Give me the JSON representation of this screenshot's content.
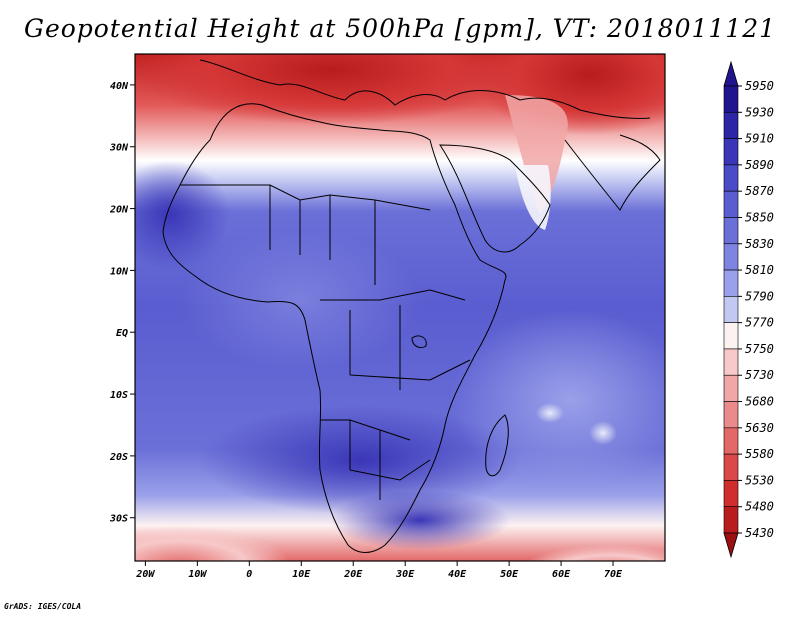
{
  "title": "Geopotential Height at 500hPa [gpm], VT: 2018011121",
  "credit": "GrADS: IGES/COLA",
  "lat_axis": [
    "40N",
    "30N",
    "20N",
    "10N",
    "EQ",
    "10S",
    "20S",
    "30S"
  ],
  "lat_values": [
    40,
    30,
    20,
    10,
    0,
    -10,
    -20,
    -30
  ],
  "lon_axis": [
    "20W",
    "10W",
    "0",
    "10E",
    "20E",
    "30E",
    "40E",
    "50E",
    "60E",
    "70E"
  ],
  "lon_values": [
    -20,
    -10,
    0,
    10,
    20,
    30,
    40,
    50,
    60,
    70
  ],
  "map_extent": {
    "lon": [
      -22,
      80
    ],
    "lat": [
      -37,
      45
    ]
  },
  "colorbar": {
    "levels": [
      "5950",
      "5930",
      "5910",
      "5890",
      "5870",
      "5850",
      "5830",
      "5810",
      "5790",
      "5770",
      "5750",
      "5730",
      "5680",
      "5630",
      "5580",
      "5530",
      "5480",
      "5430"
    ],
    "colors": [
      "#21158f",
      "#2c25a6",
      "#3a36b7",
      "#4a4bc6",
      "#5a5dd0",
      "#6b70d8",
      "#7f84e0",
      "#9aa0e9",
      "#c3c8f2",
      "#fdf2f2",
      "#f7c9c9",
      "#f1a7a7",
      "#ea8a8a",
      "#e36868",
      "#db4848",
      "#d02d2d",
      "#b81c1c"
    ]
  },
  "colors": {
    "ocean_base": "#5a5dd0",
    "warm_north": "#c62424",
    "coastline": "#000000"
  }
}
